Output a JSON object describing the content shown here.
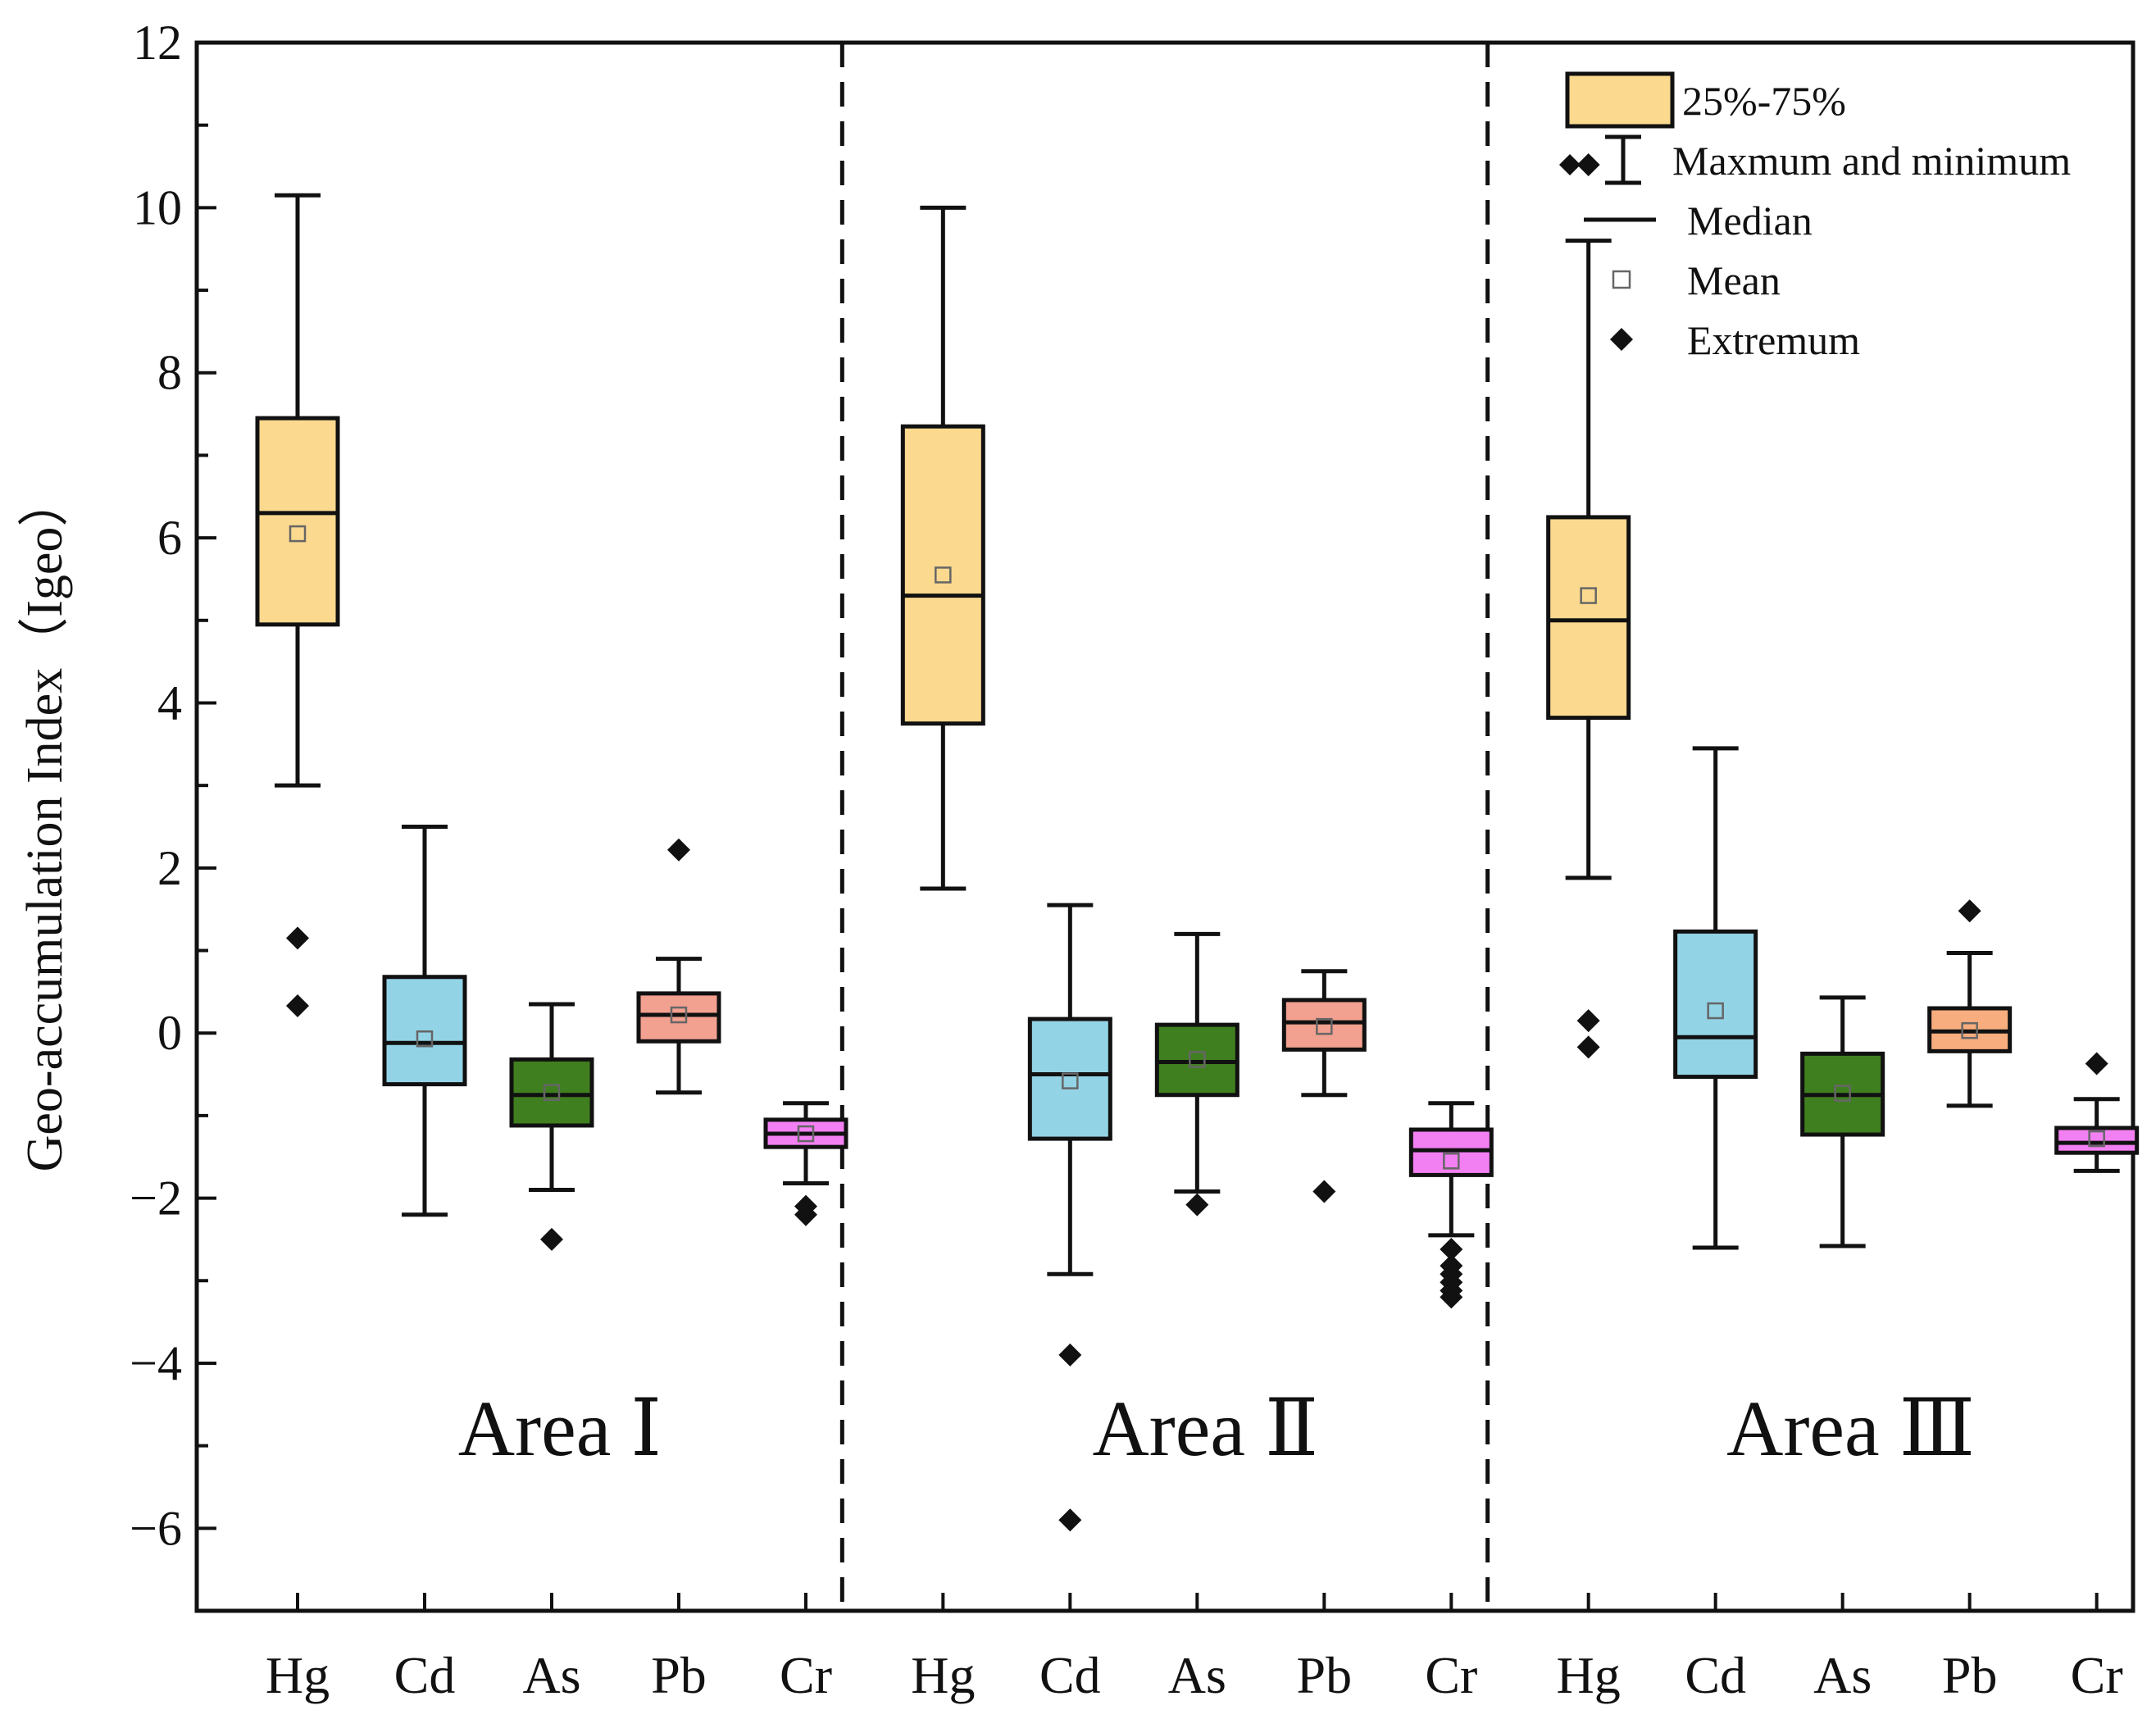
{
  "chart_data": {
    "type": "box",
    "ylabel": "Geo-accumulation Index（Igeo）",
    "ylim": [
      -7,
      12
    ],
    "yticks": [
      12,
      10,
      8,
      6,
      4,
      2,
      0,
      -2,
      -4,
      -6
    ],
    "ytick_labels": [
      "12",
      "10",
      "8",
      "6",
      "4",
      "2",
      "0",
      "−2",
      "−4",
      "−6"
    ],
    "elements": [
      "Hg",
      "Cd",
      "As",
      "Pb",
      "Cr"
    ],
    "colors": {
      "Hg": "#fbd98f",
      "Cd": "#93d3e6",
      "As": "#3f7f1f",
      "Pb": "#f2a090",
      "Cr": "#f380f3"
    },
    "area_colors": {
      "Pb": [
        "#f2a090",
        "#f2a090",
        "#f8ad7e"
      ]
    },
    "areas": [
      {
        "label": "Area Ⅰ",
        "boxes": [
          {
            "element": "Hg",
            "min": 3.0,
            "q1": 4.95,
            "median": 6.3,
            "q3": 7.45,
            "max": 10.15,
            "mean": 6.05,
            "outliers": [
              1.15,
              0.33
            ]
          },
          {
            "element": "Cd",
            "min": -2.2,
            "q1": -0.62,
            "median": -0.12,
            "q3": 0.68,
            "max": 2.5,
            "mean": -0.07,
            "outliers": []
          },
          {
            "element": "As",
            "min": -1.9,
            "q1": -1.12,
            "median": -0.75,
            "q3": -0.32,
            "max": 0.35,
            "mean": -0.72,
            "outliers": [
              -2.5
            ]
          },
          {
            "element": "Pb",
            "min": -0.72,
            "q1": -0.1,
            "median": 0.22,
            "q3": 0.48,
            "max": 0.9,
            "mean": 0.22,
            "outliers": [
              2.22
            ]
          },
          {
            "element": "Cr",
            "min": -1.82,
            "q1": -1.38,
            "median": -1.22,
            "q3": -1.05,
            "max": -0.85,
            "mean": -1.22,
            "outliers": [
              -2.1,
              -2.2
            ]
          }
        ]
      },
      {
        "label": "Area Ⅱ",
        "boxes": [
          {
            "element": "Hg",
            "min": 1.75,
            "q1": 3.75,
            "median": 5.3,
            "q3": 7.35,
            "max": 10.0,
            "mean": 5.55,
            "outliers": []
          },
          {
            "element": "Cd",
            "min": -2.92,
            "q1": -1.28,
            "median": -0.5,
            "q3": 0.17,
            "max": 1.55,
            "mean": -0.58,
            "outliers": [
              -3.9,
              -5.9
            ]
          },
          {
            "element": "As",
            "min": -1.92,
            "q1": -0.75,
            "median": -0.35,
            "q3": 0.1,
            "max": 1.2,
            "mean": -0.32,
            "outliers": [
              -2.08
            ]
          },
          {
            "element": "Pb",
            "min": -0.75,
            "q1": -0.2,
            "median": 0.13,
            "q3": 0.4,
            "max": 0.75,
            "mean": 0.08,
            "outliers": [
              -1.92
            ]
          },
          {
            "element": "Cr",
            "min": -2.45,
            "q1": -1.72,
            "median": -1.42,
            "q3": -1.17,
            "max": -0.85,
            "mean": -1.55,
            "outliers": [
              -2.62,
              -2.82,
              -2.92,
              -3.02,
              -3.12,
              -3.2
            ]
          }
        ]
      },
      {
        "label": "Area Ⅲ",
        "boxes": [
          {
            "element": "Hg",
            "min": 1.88,
            "q1": 3.82,
            "median": 5.0,
            "q3": 6.25,
            "max": 9.6,
            "mean": 5.3,
            "outliers": [
              10.52,
              0.15,
              -0.17
            ]
          },
          {
            "element": "Cd",
            "min": -2.6,
            "q1": -0.53,
            "median": -0.05,
            "q3": 1.23,
            "max": 3.45,
            "mean": 0.27,
            "outliers": []
          },
          {
            "element": "As",
            "min": -2.58,
            "q1": -1.23,
            "median": -0.75,
            "q3": -0.25,
            "max": 0.43,
            "mean": -0.73,
            "outliers": []
          },
          {
            "element": "Pb",
            "min": -0.88,
            "q1": -0.22,
            "median": 0.02,
            "q3": 0.3,
            "max": 0.97,
            "mean": 0.03,
            "outliers": [
              1.48
            ]
          },
          {
            "element": "Cr",
            "min": -1.67,
            "q1": -1.45,
            "median": -1.33,
            "q3": -1.15,
            "max": -0.8,
            "mean": -1.28,
            "outliers": [
              -0.37
            ]
          }
        ]
      }
    ],
    "legend": {
      "position": "top-right",
      "entries": [
        {
          "label": "25%-75%",
          "marker": "box"
        },
        {
          "label": "Maxmum and minimum",
          "marker": "whisker"
        },
        {
          "label": "Median",
          "marker": "line"
        },
        {
          "label": "Mean",
          "marker": "open-square"
        },
        {
          "label": "Extremum",
          "marker": "diamond"
        }
      ]
    }
  }
}
